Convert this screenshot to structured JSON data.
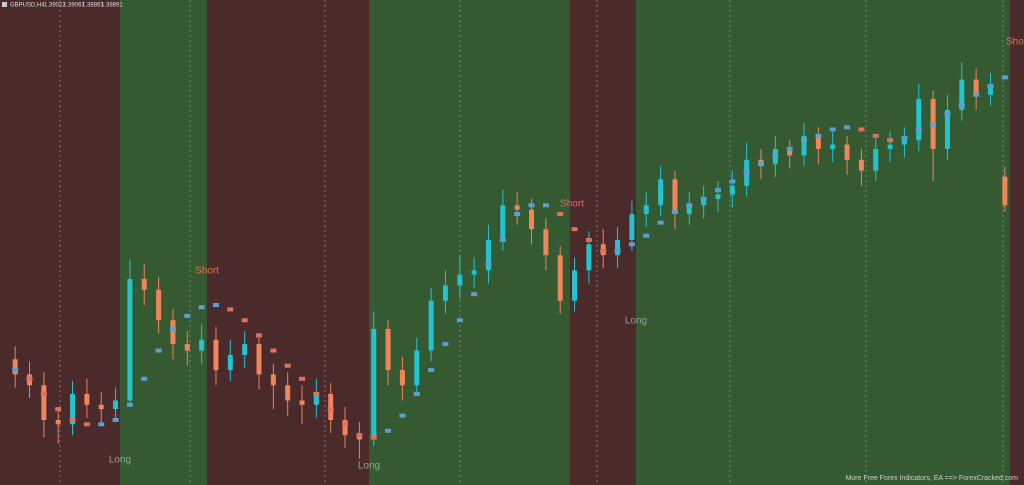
{
  "header": {
    "symbol": "GBPUSD,H4"
  },
  "chart_data": {
    "type": "candlestick",
    "open": [
      1.3818,
      1.3811,
      1.3806,
      1.379,
      1.3788,
      1.3802,
      1.3797,
      1.3795,
      1.3799,
      1.3855,
      1.385,
      1.3836,
      1.3825,
      1.3822,
      1.3827,
      1.3813,
      1.382,
      1.3825,
      1.3811,
      1.3806,
      1.3799,
      1.3797,
      1.3802,
      1.379,
      1.3783,
      1.3781,
      1.3832,
      1.3813,
      1.3806,
      1.3822,
      1.3845,
      1.3852,
      1.3857,
      1.3859,
      1.3873,
      1.3889,
      1.3887,
      1.3878,
      1.3866,
      1.3845,
      1.3859,
      1.3871,
      1.3866,
      1.3873,
      1.3885,
      1.3889,
      1.3901,
      1.3885,
      1.3889,
      1.3892,
      1.3894,
      1.3898,
      1.391,
      1.3908,
      1.3915,
      1.3912,
      1.3921,
      1.3915,
      1.3917,
      1.391,
      1.3905,
      1.3915,
      1.3917,
      1.3919,
      1.3938,
      1.3915,
      1.3933,
      1.3947,
      1.394,
      1.39022
    ],
    "high": [
      1.3824,
      1.3817,
      1.3812,
      1.3796,
      1.3808,
      1.3809,
      1.3803,
      1.3805,
      1.3864,
      1.3862,
      1.3856,
      1.3841,
      1.3831,
      1.3834,
      1.3833,
      1.3827,
      1.3831,
      1.383,
      1.3816,
      1.3812,
      1.3806,
      1.3809,
      1.3807,
      1.3796,
      1.3789,
      1.384,
      1.3836,
      1.3819,
      1.3828,
      1.3851,
      1.3859,
      1.3866,
      1.3865,
      1.388,
      1.3896,
      1.3895,
      1.3892,
      1.3883,
      1.387,
      1.3865,
      1.3877,
      1.3878,
      1.3879,
      1.3891,
      1.3895,
      1.3907,
      1.3905,
      1.3895,
      1.3898,
      1.39,
      1.3905,
      1.3918,
      1.3915,
      1.3921,
      1.3919,
      1.3927,
      1.3925,
      1.3923,
      1.3921,
      1.3915,
      1.392,
      1.3923,
      1.3925,
      1.3945,
      1.3942,
      1.394,
      1.3955,
      1.3952,
      1.395,
      1.39067
    ],
    "low": [
      1.3805,
      1.38,
      1.3782,
      1.3779,
      1.3783,
      1.3791,
      1.3789,
      1.379,
      1.3796,
      1.3843,
      1.383,
      1.3818,
      1.3815,
      1.3816,
      1.3806,
      1.3808,
      1.3814,
      1.3804,
      1.3795,
      1.3792,
      1.3788,
      1.3791,
      1.3784,
      1.3777,
      1.3772,
      1.3778,
      1.3806,
      1.3799,
      1.3801,
      1.3817,
      1.3839,
      1.3846,
      1.3851,
      1.3853,
      1.3868,
      1.388,
      1.3871,
      1.3859,
      1.3839,
      1.384,
      1.3853,
      1.386,
      1.386,
      1.3868,
      1.3879,
      1.3884,
      1.3878,
      1.388,
      1.3883,
      1.3886,
      1.3888,
      1.3893,
      1.3901,
      1.3902,
      1.3906,
      1.3907,
      1.3908,
      1.3909,
      1.3903,
      1.3898,
      1.39,
      1.3909,
      1.3911,
      1.3914,
      1.39,
      1.391,
      1.3928,
      1.3933,
      1.3935,
      1.38863
    ],
    "close": [
      1.3811,
      1.3806,
      1.379,
      1.3788,
      1.3802,
      1.3797,
      1.3795,
      1.3799,
      1.3855,
      1.385,
      1.3836,
      1.3825,
      1.3822,
      1.3827,
      1.3813,
      1.382,
      1.3825,
      1.3811,
      1.3806,
      1.3799,
      1.3797,
      1.3802,
      1.379,
      1.3783,
      1.3781,
      1.3832,
      1.3813,
      1.3806,
      1.3822,
      1.3845,
      1.3852,
      1.3857,
      1.3859,
      1.3873,
      1.3889,
      1.3887,
      1.3878,
      1.3866,
      1.3845,
      1.3859,
      1.3871,
      1.3866,
      1.3873,
      1.3885,
      1.3889,
      1.3901,
      1.3885,
      1.3889,
      1.3892,
      1.3894,
      1.3898,
      1.391,
      1.3908,
      1.3915,
      1.3912,
      1.3921,
      1.3915,
      1.3917,
      1.391,
      1.3905,
      1.3915,
      1.3917,
      1.3919,
      1.3938,
      1.3915,
      1.3933,
      1.3947,
      1.394,
      1.3944,
      1.38891
    ],
    "ma": [
      1.3813,
      1.3809,
      1.3802,
      1.3795,
      1.379,
      1.3788,
      1.3788,
      1.379,
      1.3797,
      1.3809,
      1.3822,
      1.3832,
      1.3838,
      1.3842,
      1.3843,
      1.3841,
      1.3836,
      1.3829,
      1.3822,
      1.3815,
      1.3809,
      1.3802,
      1.3795,
      1.3788,
      1.3783,
      1.3782,
      1.3785,
      1.3792,
      1.3802,
      1.3813,
      1.3825,
      1.3836,
      1.3848,
      1.3862,
      1.3873,
      1.3885,
      1.3889,
      1.3889,
      1.3885,
      1.3878,
      1.3873,
      1.3868,
      1.3868,
      1.3871,
      1.3875,
      1.3881,
      1.3886,
      1.3889,
      1.3892,
      1.3896,
      1.39,
      1.3904,
      1.3908,
      1.3912,
      1.3915,
      1.3919,
      1.3921,
      1.3924,
      1.3925,
      1.3924,
      1.3921,
      1.3919,
      1.392,
      1.3924,
      1.3926,
      1.3931,
      1.3935,
      1.394,
      1.3944,
      1.3948
    ],
    "up_color": "#22c4d2",
    "down_color": "#f0845a",
    "ma_up_color": "#5b9fd6",
    "ma_down_color": "#e0705a",
    "ylim": [
      1.376,
      1.398
    ],
    "annotations": [
      "Long",
      "Short",
      "Long",
      "Short",
      "Long",
      "Short"
    ],
    "watermark": "More Free Forex Indicators, EA ==> ForexCracked.com"
  }
}
